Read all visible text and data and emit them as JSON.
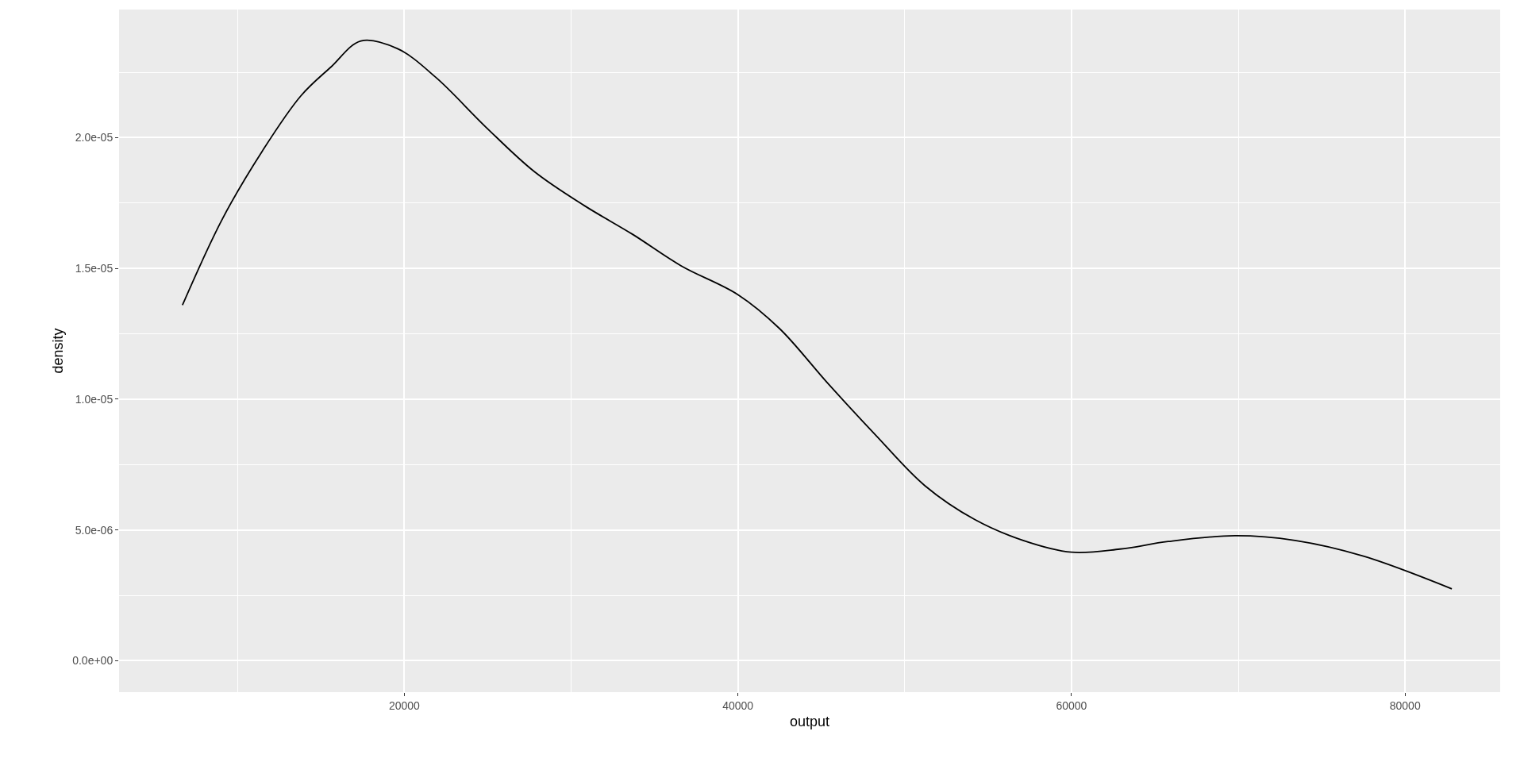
{
  "chart_data": {
    "type": "line",
    "xlabel": "output",
    "ylabel": "density",
    "x": [
      6700,
      9100,
      11500,
      13800,
      15600,
      17400,
      19600,
      21900,
      24900,
      27800,
      30800,
      33700,
      36600,
      40000,
      42500,
      45400,
      48300,
      51200,
      54200,
      57100,
      60000,
      62900,
      65800,
      69800,
      73400,
      77500,
      82800
    ],
    "series": [
      {
        "color": "#000000",
        "values": [
          1.36e-05,
          1.69e-05,
          1.95e-05,
          2.16e-05,
          2.27e-05,
          2.37e-05,
          2.34e-05,
          2.23e-05,
          2.04e-05,
          1.87e-05,
          1.74e-05,
          1.63e-05,
          1.51e-05,
          1.4e-05,
          1.27e-05,
          1.06e-05,
          8.6e-06,
          6.7e-06,
          5.4e-06,
          4.6e-06,
          4.15e-06,
          4.27e-06,
          4.56e-06,
          4.78e-06,
          4.6e-06,
          4e-06,
          2.75e-06
        ]
      }
    ],
    "xlim": [
      2900,
      85700
    ],
    "ylim": [
      -1.2e-06,
      2.49e-05
    ],
    "xticks": [
      20000,
      40000,
      60000,
      80000
    ],
    "yticks": [
      {
        "value": 0,
        "label": "0.0e+00"
      },
      {
        "value": 5e-06,
        "label": "5.0e-06"
      },
      {
        "value": 1e-05,
        "label": "1.0e-05"
      },
      {
        "value": 1.5e-05,
        "label": "1.5e-05"
      },
      {
        "value": 2e-05,
        "label": "2.0e-05"
      }
    ],
    "grid": true,
    "marker": "none",
    "line_style": "solid",
    "legend": false
  }
}
